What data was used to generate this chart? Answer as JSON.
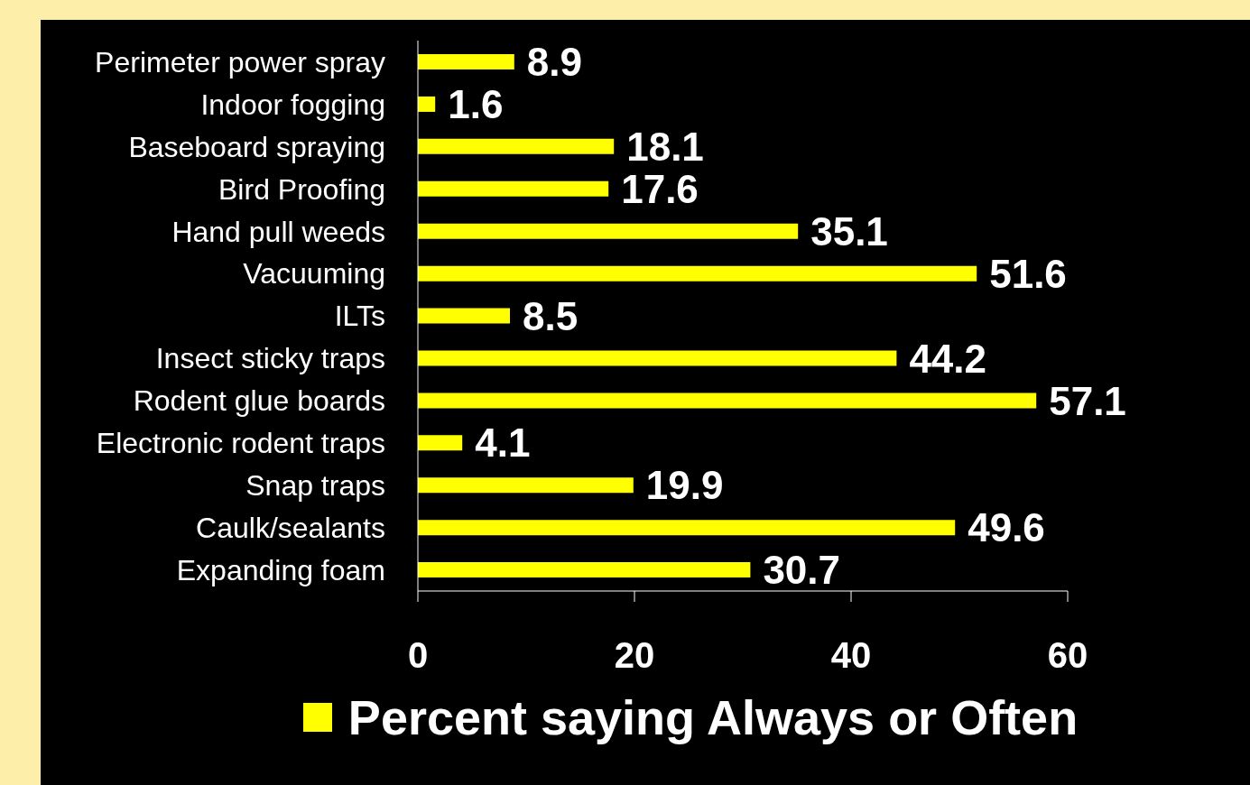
{
  "chart_data": {
    "type": "bar",
    "orientation": "horizontal",
    "categories": [
      "Perimeter power spray",
      "Indoor fogging",
      "Baseboard spraying",
      "Bird Proofing",
      "Hand pull weeds",
      "Vacuuming",
      "ILTs",
      "Insect sticky traps",
      "Rodent glue boards",
      "Electronic rodent traps",
      "Snap traps",
      "Caulk/sealants",
      "Expanding foam"
    ],
    "series": [
      {
        "name": "Percent saying Always or Often",
        "color": "#ffff00",
        "values": [
          8.9,
          1.6,
          18.1,
          17.6,
          35.1,
          51.6,
          8.5,
          44.2,
          57.1,
          4.1,
          19.9,
          49.6,
          30.7
        ]
      }
    ],
    "xlim": [
      0,
      60
    ],
    "xticks": [
      0,
      20,
      40,
      60
    ],
    "data_labels": true,
    "legend": "bottom"
  }
}
